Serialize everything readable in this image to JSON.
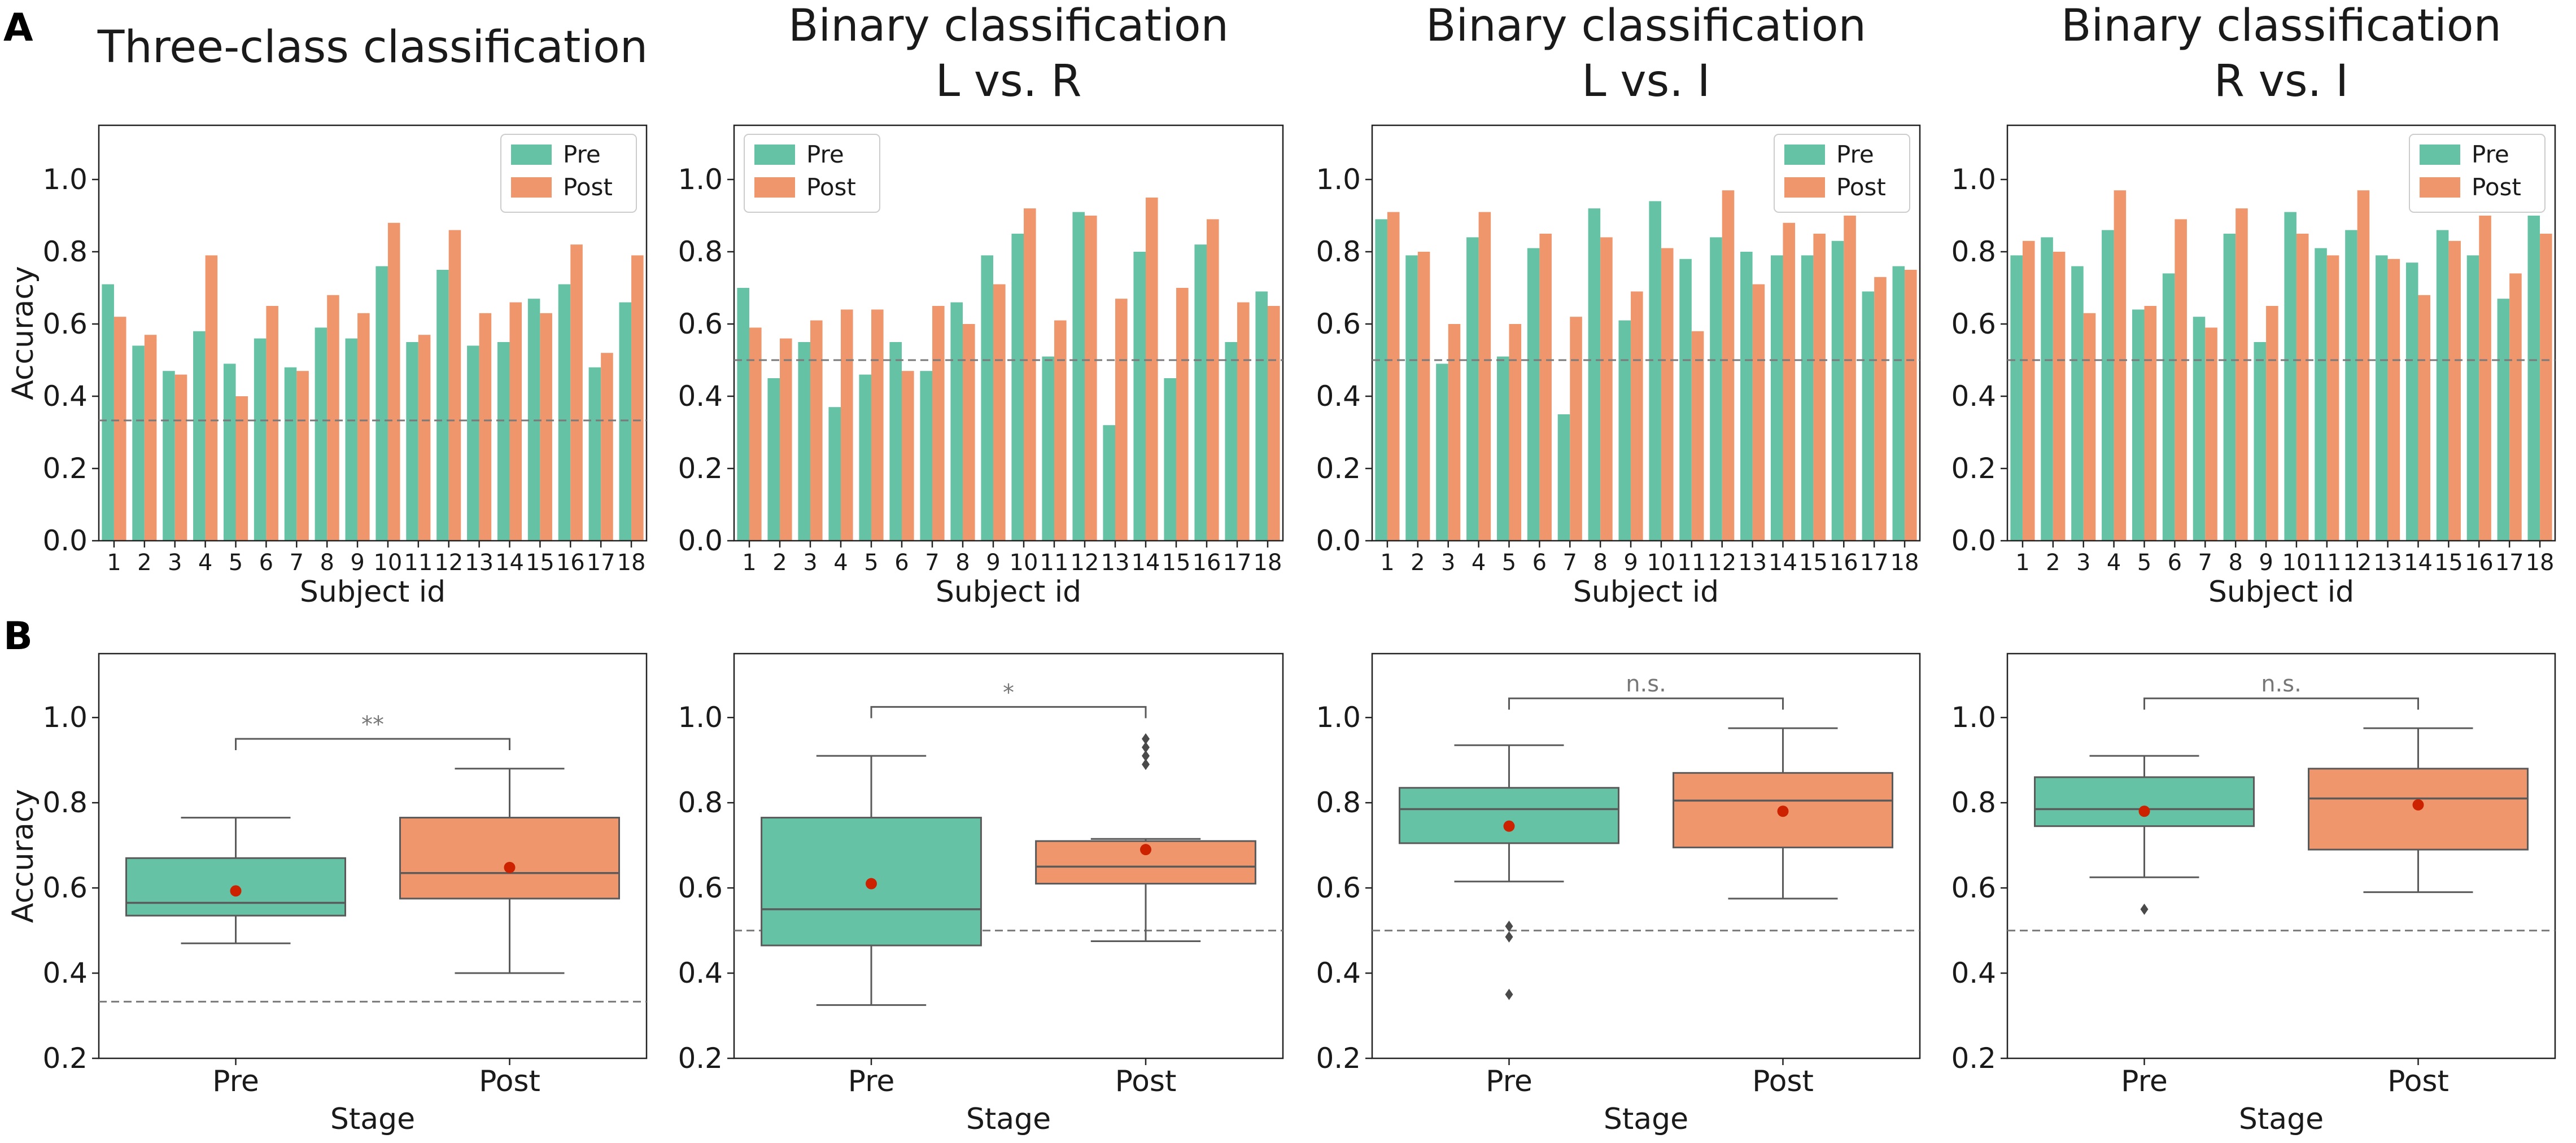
{
  "panel_labels": [
    "A",
    "B"
  ],
  "colors": {
    "pre": "#66c2a5",
    "post": "#f0966c",
    "median": "#5a5a5a",
    "mean": "#cc2200",
    "chance": "#7a7a7a",
    "whisker": "#5a5a5a"
  },
  "chart_data": [
    {
      "type": "bar",
      "title": "Three-class classification",
      "xlabel": "Subject id",
      "ylabel": "Accuracy",
      "ylim": [
        0.0,
        1.15
      ],
      "yticks": [
        "0.0",
        "0.2",
        "0.4",
        "0.6",
        "0.8",
        "1.0"
      ],
      "chance_level": 0.333,
      "legend_position": "top-right",
      "categories": [
        "1",
        "2",
        "3",
        "4",
        "5",
        "6",
        "7",
        "8",
        "9",
        "10",
        "11",
        "12",
        "13",
        "14",
        "15",
        "16",
        "17",
        "18"
      ],
      "series": [
        {
          "name": "Pre",
          "values": [
            0.71,
            0.54,
            0.47,
            0.58,
            0.49,
            0.56,
            0.48,
            0.59,
            0.56,
            0.76,
            0.55,
            0.75,
            0.54,
            0.55,
            0.67,
            0.71,
            0.48,
            0.66
          ]
        },
        {
          "name": "Post",
          "values": [
            0.62,
            0.57,
            0.46,
            0.79,
            0.4,
            0.65,
            0.47,
            0.68,
            0.63,
            0.88,
            0.57,
            0.86,
            0.63,
            0.66,
            0.63,
            0.82,
            0.52,
            0.79
          ]
        }
      ]
    },
    {
      "type": "bar",
      "title": "Binary classification",
      "subtitle": "L vs. R",
      "xlabel": "Subject id",
      "ylabel": "",
      "ylim": [
        0.0,
        1.15
      ],
      "yticks": [
        "0.0",
        "0.2",
        "0.4",
        "0.6",
        "0.8",
        "1.0"
      ],
      "chance_level": 0.5,
      "legend_position": "top-left",
      "categories": [
        "1",
        "2",
        "3",
        "4",
        "5",
        "6",
        "7",
        "8",
        "9",
        "10",
        "11",
        "12",
        "13",
        "14",
        "15",
        "16",
        "17",
        "18"
      ],
      "series": [
        {
          "name": "Pre",
          "values": [
            0.7,
            0.45,
            0.55,
            0.37,
            0.46,
            0.55,
            0.47,
            0.66,
            0.79,
            0.85,
            0.51,
            0.91,
            0.32,
            0.8,
            0.45,
            0.82,
            0.55,
            0.69
          ]
        },
        {
          "name": "Post",
          "values": [
            0.59,
            0.56,
            0.61,
            0.64,
            0.64,
            0.47,
            0.65,
            0.6,
            0.71,
            0.92,
            0.61,
            0.9,
            0.67,
            0.95,
            0.7,
            0.89,
            0.66,
            0.65
          ]
        }
      ]
    },
    {
      "type": "bar",
      "title": "Binary classification",
      "subtitle": "L vs. I",
      "xlabel": "Subject id",
      "ylabel": "",
      "ylim": [
        0.0,
        1.15
      ],
      "yticks": [
        "0.0",
        "0.2",
        "0.4",
        "0.6",
        "0.8",
        "1.0"
      ],
      "chance_level": 0.5,
      "legend_position": "top-right",
      "categories": [
        "1",
        "2",
        "3",
        "4",
        "5",
        "6",
        "7",
        "8",
        "9",
        "10",
        "11",
        "12",
        "13",
        "14",
        "15",
        "16",
        "17",
        "18"
      ],
      "series": [
        {
          "name": "Pre",
          "values": [
            0.89,
            0.79,
            0.49,
            0.84,
            0.51,
            0.81,
            0.35,
            0.92,
            0.61,
            0.94,
            0.78,
            0.84,
            0.8,
            0.79,
            0.79,
            0.83,
            0.69,
            0.76
          ]
        },
        {
          "name": "Post",
          "values": [
            0.91,
            0.8,
            0.6,
            0.91,
            0.6,
            0.85,
            0.62,
            0.84,
            0.69,
            0.81,
            0.58,
            0.97,
            0.71,
            0.88,
            0.85,
            0.9,
            0.73,
            0.75
          ]
        }
      ]
    },
    {
      "type": "bar",
      "title": "Binary classification",
      "subtitle": "R vs. I",
      "xlabel": "Subject id",
      "ylabel": "",
      "ylim": [
        0.0,
        1.15
      ],
      "yticks": [
        "0.0",
        "0.2",
        "0.4",
        "0.6",
        "0.8",
        "1.0"
      ],
      "chance_level": 0.5,
      "legend_position": "top-right",
      "categories": [
        "1",
        "2",
        "3",
        "4",
        "5",
        "6",
        "7",
        "8",
        "9",
        "10",
        "11",
        "12",
        "13",
        "14",
        "15",
        "16",
        "17",
        "18"
      ],
      "series": [
        {
          "name": "Pre",
          "values": [
            0.79,
            0.84,
            0.76,
            0.86,
            0.64,
            0.74,
            0.62,
            0.85,
            0.55,
            0.91,
            0.81,
            0.86,
            0.79,
            0.77,
            0.86,
            0.79,
            0.67,
            0.9
          ]
        },
        {
          "name": "Post",
          "values": [
            0.83,
            0.8,
            0.63,
            0.97,
            0.65,
            0.89,
            0.59,
            0.92,
            0.65,
            0.85,
            0.79,
            0.97,
            0.78,
            0.68,
            0.83,
            0.9,
            0.74,
            0.85
          ]
        }
      ]
    },
    {
      "type": "box",
      "xlabel": "Stage",
      "ylabel": "Accuracy",
      "ylim": [
        0.2,
        1.15
      ],
      "yticks": [
        "0.2",
        "0.4",
        "0.6",
        "0.8",
        "1.0"
      ],
      "chance_level": 0.333,
      "categories": [
        "Pre",
        "Post"
      ],
      "boxes": [
        {
          "name": "Pre",
          "whisker_low": 0.47,
          "q1": 0.535,
          "median": 0.565,
          "q3": 0.67,
          "whisker_high": 0.765,
          "mean": 0.593,
          "outliers": []
        },
        {
          "name": "Post",
          "whisker_low": 0.4,
          "q1": 0.575,
          "median": 0.635,
          "q3": 0.765,
          "whisker_high": 0.88,
          "mean": 0.648,
          "outliers": []
        }
      ],
      "significance": {
        "label": "**",
        "y": 0.95
      }
    },
    {
      "type": "box",
      "xlabel": "Stage",
      "ylabel": "",
      "ylim": [
        0.2,
        1.15
      ],
      "yticks": [
        "0.2",
        "0.4",
        "0.6",
        "0.8",
        "1.0"
      ],
      "chance_level": 0.5,
      "categories": [
        "Pre",
        "Post"
      ],
      "boxes": [
        {
          "name": "Pre",
          "whisker_low": 0.325,
          "q1": 0.465,
          "median": 0.55,
          "q3": 0.765,
          "whisker_high": 0.91,
          "mean": 0.61,
          "outliers": []
        },
        {
          "name": "Post",
          "whisker_low": 0.475,
          "q1": 0.61,
          "median": 0.65,
          "q3": 0.71,
          "whisker_high": 0.715,
          "mean": 0.69,
          "outliers": [
            0.89,
            0.91,
            0.93,
            0.95
          ]
        }
      ],
      "significance": {
        "label": "*",
        "y": 1.025
      }
    },
    {
      "type": "box",
      "xlabel": "Stage",
      "ylabel": "",
      "ylim": [
        0.2,
        1.15
      ],
      "yticks": [
        "0.2",
        "0.4",
        "0.6",
        "0.8",
        "1.0"
      ],
      "chance_level": 0.5,
      "categories": [
        "Pre",
        "Post"
      ],
      "boxes": [
        {
          "name": "Pre",
          "whisker_low": 0.615,
          "q1": 0.705,
          "median": 0.785,
          "q3": 0.835,
          "whisker_high": 0.935,
          "mean": 0.745,
          "outliers": [
            0.35,
            0.485,
            0.51
          ]
        },
        {
          "name": "Post",
          "whisker_low": 0.575,
          "q1": 0.695,
          "median": 0.805,
          "q3": 0.87,
          "whisker_high": 0.975,
          "mean": 0.78,
          "outliers": []
        }
      ],
      "significance": {
        "label": "n.s.",
        "y": 1.045
      }
    },
    {
      "type": "box",
      "xlabel": "Stage",
      "ylabel": "",
      "ylim": [
        0.2,
        1.15
      ],
      "yticks": [
        "0.2",
        "0.4",
        "0.6",
        "0.8",
        "1.0"
      ],
      "chance_level": 0.5,
      "categories": [
        "Pre",
        "Post"
      ],
      "boxes": [
        {
          "name": "Pre",
          "whisker_low": 0.625,
          "q1": 0.745,
          "median": 0.785,
          "q3": 0.86,
          "whisker_high": 0.91,
          "mean": 0.78,
          "outliers": [
            0.55
          ]
        },
        {
          "name": "Post",
          "whisker_low": 0.59,
          "q1": 0.69,
          "median": 0.81,
          "q3": 0.88,
          "whisker_high": 0.975,
          "mean": 0.795,
          "outliers": []
        }
      ],
      "significance": {
        "label": "n.s.",
        "y": 1.045
      }
    }
  ]
}
